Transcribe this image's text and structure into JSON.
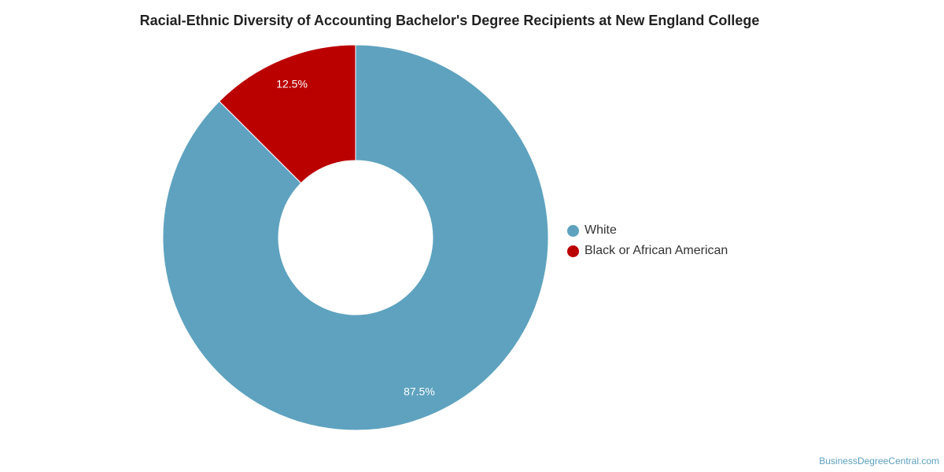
{
  "chart_data": {
    "type": "pie",
    "title": "Racial-Ethnic Diversity of Accounting Bachelor's Degree Recipients at New England College",
    "categories": [
      "White",
      "Black or African American"
    ],
    "values": [
      87.5,
      12.5
    ],
    "value_labels": [
      "87.5%",
      "12.5%"
    ],
    "colors": [
      "#5ea2bf",
      "#bb0000"
    ],
    "donut": true,
    "legend_position": "right"
  },
  "legend": {
    "items": [
      {
        "label": "White",
        "color": "#5ea2bf"
      },
      {
        "label": "Black or African American",
        "color": "#bb0000"
      }
    ]
  },
  "credit": "BusinessDegreeCentral.com"
}
